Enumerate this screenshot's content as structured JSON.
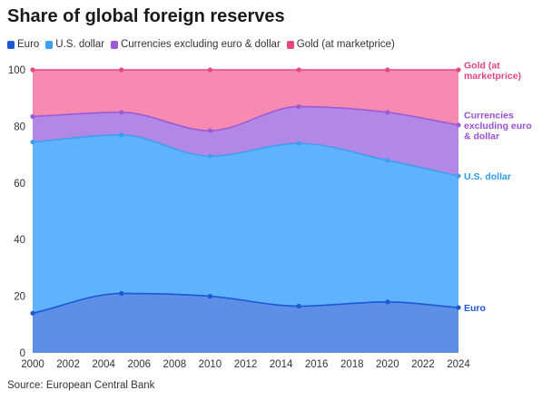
{
  "chart_data": {
    "type": "area",
    "stacked": true,
    "title": "Share of global foreign reserves",
    "xlabel": "",
    "ylabel": "",
    "x": [
      2000,
      2005,
      2010,
      2015,
      2020,
      2024
    ],
    "xlim": [
      2000,
      2024
    ],
    "ylim": [
      0,
      100
    ],
    "x_ticks": [
      "2000",
      "2002",
      "2004",
      "2006",
      "2008",
      "2010",
      "2012",
      "2014",
      "2016",
      "2018",
      "2020",
      "2022",
      "2024"
    ],
    "y_ticks": [
      "0",
      "20",
      "40",
      "60",
      "80",
      "100"
    ],
    "grid": false,
    "legend": "top-left",
    "series": [
      {
        "name": "Euro",
        "values": [
          14,
          21,
          20,
          16.5,
          18,
          16
        ],
        "color": "#5d8fe6",
        "line_color": "#1c57d4",
        "label_color": "#1a56cf",
        "label_lines": [
          "Euro"
        ]
      },
      {
        "name": "U.S. dollar",
        "values": [
          60.5,
          56,
          49.5,
          57.5,
          50,
          46.5
        ],
        "color": "#5fb3fd",
        "line_color": "#3d9ff2",
        "label_color": "#2b9bef",
        "label_lines": [
          "U.S. dollar"
        ]
      },
      {
        "name": "Currencies excluding euro & dollar",
        "values": [
          9,
          8,
          9,
          13,
          17,
          18
        ],
        "color": "#b288e6",
        "line_color": "#9d5ad8",
        "label_color": "#9a4fd2",
        "label_lines": [
          "Currencies",
          "excluding euro",
          "& dollar"
        ]
      },
      {
        "name": "Gold (at marketprice)",
        "values": [
          16.5,
          15,
          21.5,
          13,
          15,
          19.5
        ],
        "color": "#f78ab1",
        "line_color": "#e6497f",
        "label_color": "#e2457f",
        "label_lines": [
          "Gold (at",
          "marketprice)"
        ]
      }
    ]
  },
  "source": "Source: European Central Bank"
}
